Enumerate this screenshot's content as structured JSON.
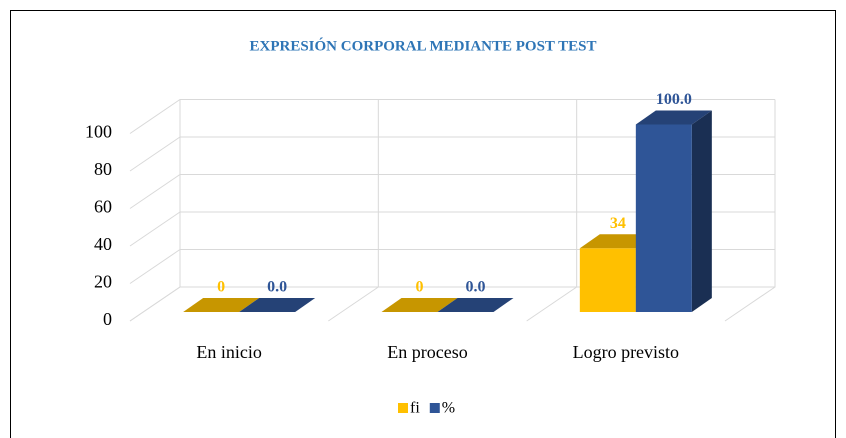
{
  "chart_data": {
    "type": "bar3d",
    "title": "EXPRESIÓN CORPORAL MEDIANTE POST TEST",
    "categories": [
      "En inicio",
      "En proceso",
      "Logro previsto"
    ],
    "series": [
      {
        "name": "fi",
        "color": "#ffc000",
        "values": [
          0,
          0,
          34
        ]
      },
      {
        "name": "%",
        "color": "#2f5597",
        "values": [
          0,
          0,
          100
        ],
        "value_labels": [
          "0.0",
          "0.0",
          "100.0"
        ]
      }
    ],
    "ylim": [
      0,
      100
    ],
    "yticks": [
      0,
      20,
      40,
      60,
      80,
      100
    ],
    "grid": true,
    "legend": "bottom"
  }
}
